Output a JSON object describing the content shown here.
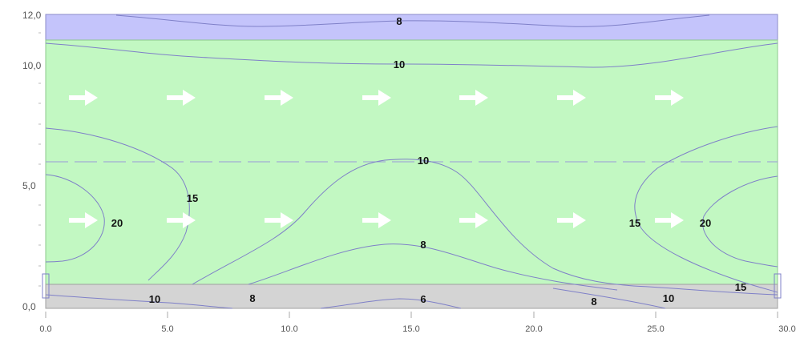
{
  "colors": {
    "top_band": "#c4c4fb",
    "main_zone": "#c2f8c2",
    "bottom_band": "#d4d4d4",
    "contour": "#7f80c8",
    "arrow": "#ffffff",
    "dashed_line": "#9a9ad8"
  },
  "y_axis": {
    "ticks": [
      "12,0",
      "10,0",
      "5,0",
      "0,0"
    ]
  },
  "x_axis": {
    "ticks": [
      "0.0",
      "5.0",
      "10.0",
      "15.0",
      "20.0",
      "25.0",
      "30.0"
    ]
  },
  "contour_labels": [
    "8",
    "10",
    "10",
    "15",
    "20",
    "15",
    "20",
    "8",
    "6",
    "10",
    "8",
    "8",
    "10",
    "15"
  ],
  "icons": {
    "flow_arrow": "arrow-right-icon"
  }
}
